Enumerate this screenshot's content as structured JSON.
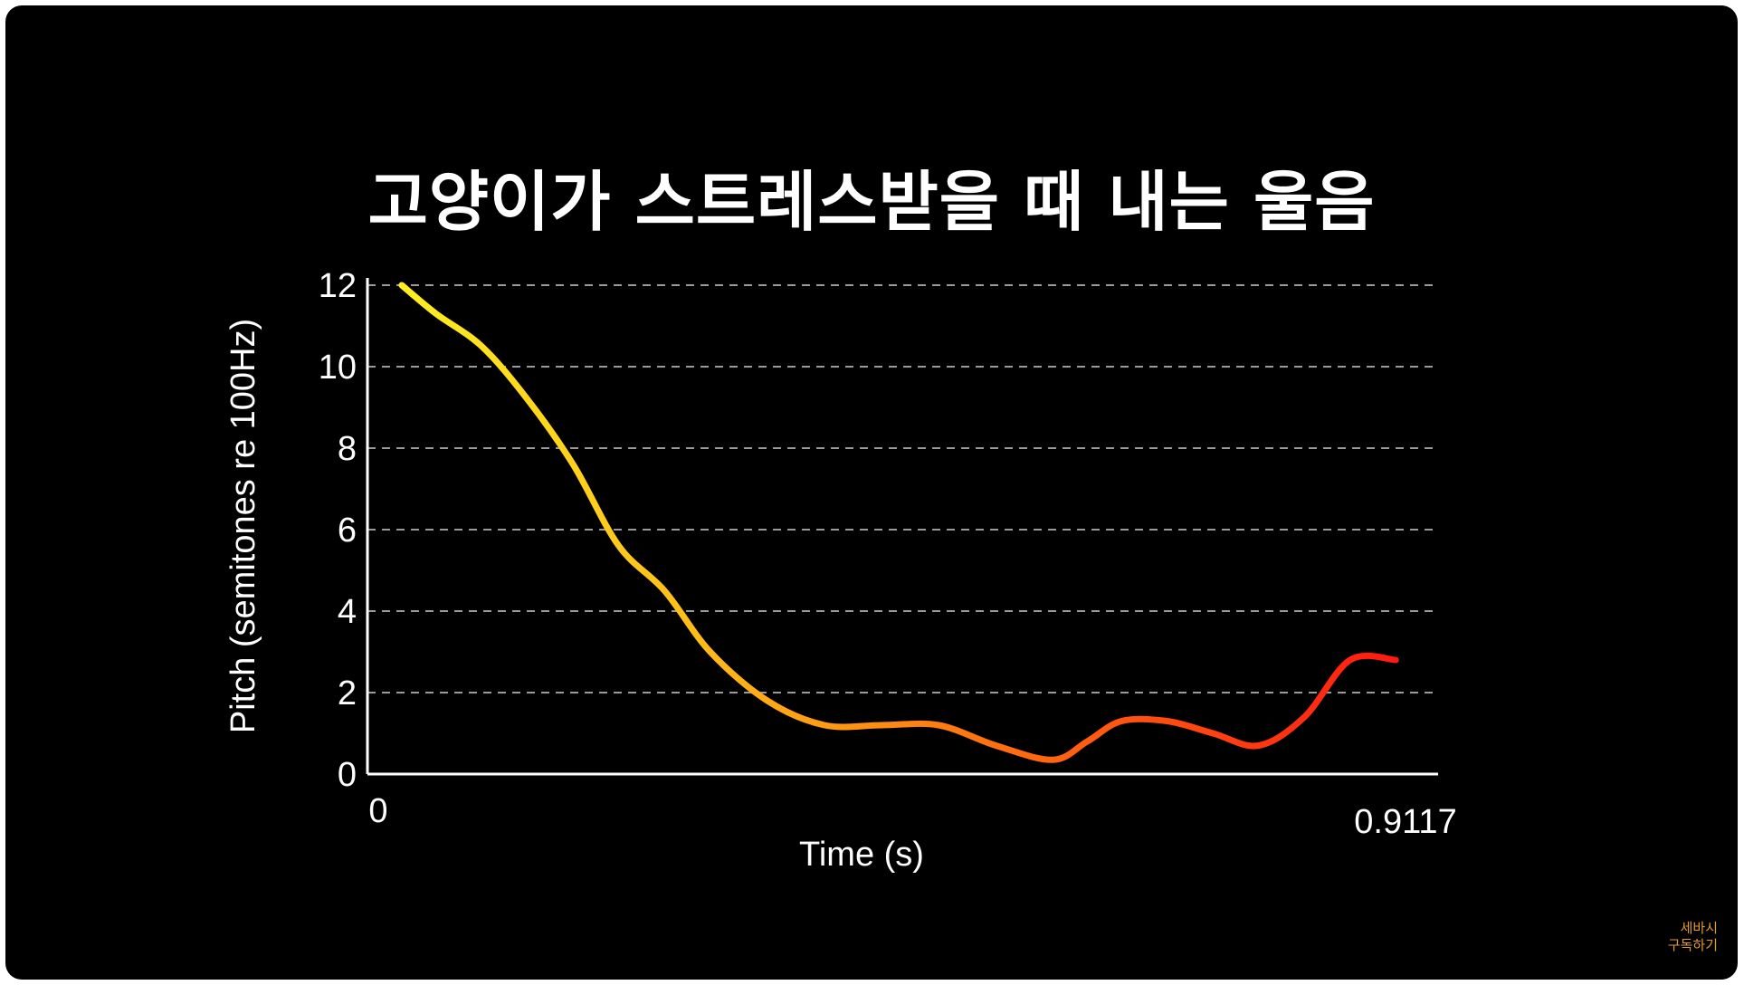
{
  "title": "고양이가 스트레스받을 때 내는 울음",
  "watermark": {
    "line1": "세바시",
    "line2": "구독하기"
  },
  "colors": {
    "background": "#000000",
    "line_start": "#ffee22",
    "line_end": "#ff1a10",
    "grid": "#9a9a9a"
  },
  "chart_data": {
    "type": "line",
    "title": "고양이가 스트레스받을 때 내는 울음",
    "xlabel": "Time (s)",
    "ylabel": "Pitch (semitones re 100Hz)",
    "x_ticks": [
      "0",
      "0.9117"
    ],
    "xlim": [
      0,
      0.9117
    ],
    "ylim": [
      0,
      12
    ],
    "y_ticks": [
      0,
      2,
      4,
      6,
      8,
      10,
      12
    ],
    "grid": "horizontal dashed",
    "x": [
      0.03,
      0.06,
      0.1,
      0.14,
      0.18,
      0.22,
      0.26,
      0.3,
      0.35,
      0.4,
      0.45,
      0.5,
      0.55,
      0.6,
      0.63,
      0.66,
      0.7,
      0.74,
      0.78,
      0.82,
      0.86,
      0.9
    ],
    "y": [
      12.0,
      11.3,
      10.5,
      9.2,
      7.6,
      5.6,
      4.5,
      3.0,
      1.8,
      1.2,
      1.2,
      1.2,
      0.7,
      0.35,
      0.8,
      1.3,
      1.3,
      1.0,
      0.7,
      1.4,
      2.8,
      2.8
    ]
  }
}
